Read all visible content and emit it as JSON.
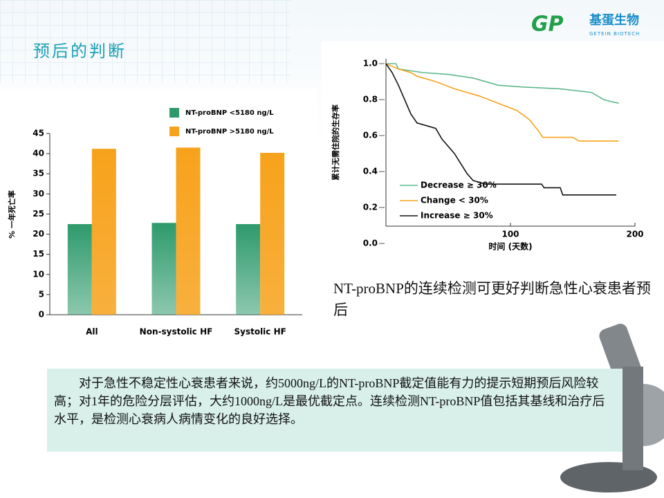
{
  "header": {
    "title": "预后的判断",
    "logo_mark": "GP",
    "logo_name": "基蛋生物",
    "logo_sub": "GETEIN BIOTECH"
  },
  "chart_data": [
    {
      "type": "bar",
      "y_label": "% 一年死亡率",
      "categories": [
        "All",
        "Non-systolic HF",
        "Systolic HF"
      ],
      "series": [
        {
          "name": "NT-proBNP <5180 ng/L",
          "color": "#2e9a6c",
          "values": [
            22.5,
            22.8,
            22.5
          ]
        },
        {
          "name": "NT-proBNP >5180 ng/L",
          "color": "#f7a21b",
          "values": [
            41.2,
            41.5,
            40.2
          ]
        }
      ],
      "ylim": [
        0,
        45
      ],
      "yticks": [
        0,
        5,
        10,
        15,
        20,
        25,
        30,
        35,
        40,
        45
      ]
    },
    {
      "type": "line",
      "y_label": "累计无需住院的生存率",
      "x_label": "时间 (天数)",
      "series": [
        {
          "name": "Decrease ≥ 30%",
          "color": "#5cb88a",
          "x": [
            0,
            8,
            10,
            30,
            50,
            70,
            90,
            110,
            140,
            165,
            175,
            180,
            187
          ],
          "values": [
            1.0,
            1.0,
            0.97,
            0.95,
            0.94,
            0.92,
            0.88,
            0.87,
            0.86,
            0.84,
            0.8,
            0.79,
            0.78
          ]
        },
        {
          "name": "Change < 30%",
          "color": "#f7a21b",
          "x": [
            0,
            10,
            20,
            25,
            40,
            55,
            75,
            90,
            105,
            115,
            122,
            126,
            150,
            155,
            187
          ],
          "values": [
            1.0,
            0.97,
            0.95,
            0.93,
            0.9,
            0.86,
            0.82,
            0.78,
            0.74,
            0.69,
            0.63,
            0.59,
            0.59,
            0.57,
            0.57
          ]
        },
        {
          "name": "Increase ≥ 30%",
          "color": "#111111",
          "x": [
            0,
            5,
            10,
            15,
            20,
            25,
            40,
            45,
            55,
            65,
            70,
            80,
            125,
            127,
            140,
            142,
            185
          ],
          "values": [
            1.0,
            0.95,
            0.88,
            0.8,
            0.72,
            0.67,
            0.64,
            0.58,
            0.5,
            0.39,
            0.35,
            0.33,
            0.33,
            0.31,
            0.31,
            0.27,
            0.27
          ]
        }
      ],
      "xlim": [
        0,
        200
      ],
      "xticks": [
        100,
        200
      ],
      "ylim": [
        0,
        1
      ],
      "yticks": [
        {
          "value": 0,
          "label": "0.0"
        },
        0.2,
        0.4,
        0.6,
        0.8,
        {
          "value": 1,
          "label": "1.0"
        }
      ]
    }
  ],
  "caption": "NT-proBNP的连续检测可更好判断急性心衰患者预后",
  "body": "对于急性不稳定性心衰患者来说，约5000ng/L的NT-proBNP截定值能有力的提示短期预后风险较高；对1年的危险分层评估，大约1000ng/L是最优截定点。连续检测NT-proBNP值包括其基线和治疗后水平，是检测心衰病人病情变化的良好选择。"
}
